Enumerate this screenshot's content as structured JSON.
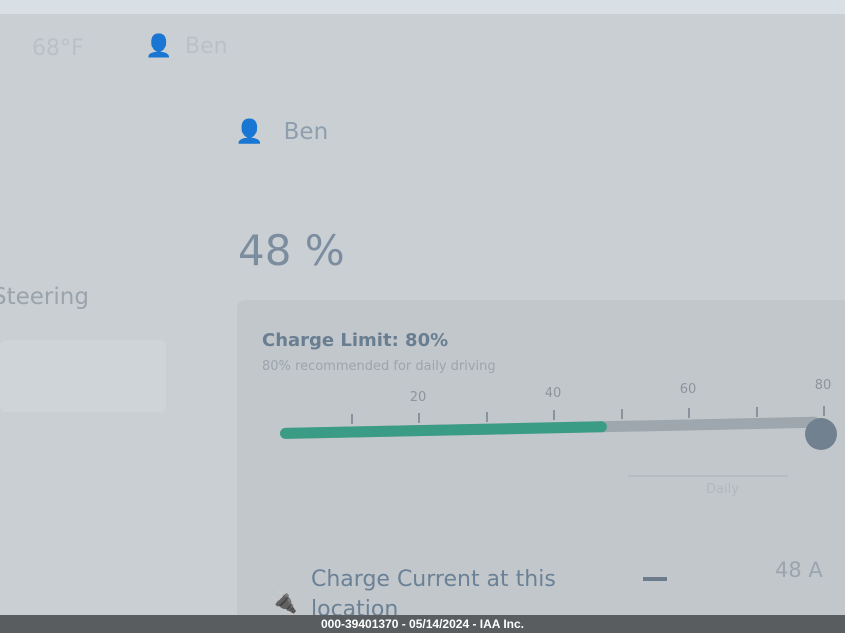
{
  "status_bar": {
    "temperature": "68°F",
    "user": "Ben"
  },
  "sidebar": {
    "item_label": "Steering"
  },
  "profile": {
    "user": "Ben",
    "icon": "person-icon"
  },
  "battery": {
    "percent_label": "48 %",
    "level": 48
  },
  "charge_limit": {
    "title": "Charge Limit: 80%",
    "subtitle": "80% recommended for daily driving",
    "limit": 80,
    "scale_labels": [
      "20",
      "40",
      "60",
      "80"
    ],
    "daily_label": "Daily",
    "fill_color": "#3a9c85"
  },
  "charge_current": {
    "label": "Charge Current at this location",
    "decrement": "—",
    "value": "48 A",
    "icon": "plug-icon"
  },
  "watermark": "000-39401370 - 05/14/2024 - IAA Inc."
}
